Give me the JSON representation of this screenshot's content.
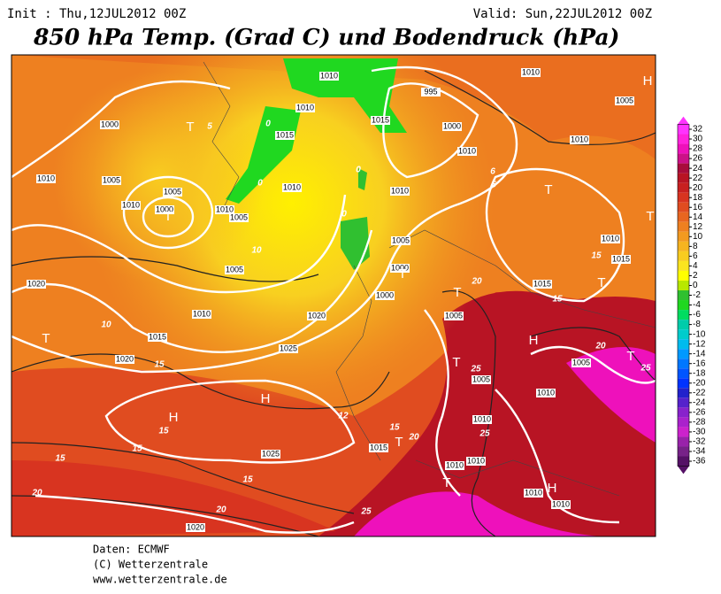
{
  "header": {
    "init": "Init : Thu,12JUL2012 00Z",
    "valid": "Valid: Sun,22JUL2012 00Z",
    "title": "850 hPa Temp. (Grad C) und Bodendruck (hPa)"
  },
  "footer": [
    "Daten: ECMWF",
    "(C) Wetterzentrale",
    "www.wetterzentrale.de"
  ],
  "colorbar": {
    "ticks": [
      32,
      30,
      28,
      26,
      24,
      22,
      20,
      18,
      16,
      14,
      12,
      10,
      8,
      6,
      4,
      2,
      0,
      -2,
      -4,
      -6,
      -8,
      -10,
      -12,
      -14,
      -16,
      -18,
      -20,
      -22,
      -24,
      -26,
      -28,
      -30,
      -32,
      -34,
      -36
    ],
    "colors": [
      "#ff33ff",
      "#ff22dd",
      "#ee11bb",
      "#cc1188",
      "#a80c3c",
      "#b81424",
      "#c82020",
      "#d83420",
      "#e04c20",
      "#e86620",
      "#ee8020",
      "#f29a20",
      "#f6b420",
      "#f8cc20",
      "#fae420",
      "#ffff00",
      "#b8e800",
      "#30c030",
      "#20d820",
      "#00dc60",
      "#00ccaa",
      "#00cccc",
      "#00bbee",
      "#0099ff",
      "#0077ff",
      "#0055ff",
      "#0033ff",
      "#2222cc",
      "#5522cc",
      "#8822cc",
      "#aa22cc",
      "#cc22cc",
      "#9922aa",
      "#772288",
      "#551166"
    ]
  },
  "map": {
    "isobar_labels": [
      "1010",
      "1010",
      "1015",
      "1015",
      "995",
      "1000",
      "1010",
      "1010",
      "1005",
      "1010",
      "1000",
      "1010",
      "1005",
      "1005",
      "1000",
      "1010",
      "1010",
      "1005",
      "1010",
      "1010",
      "1005",
      "1000",
      "1000",
      "1005",
      "1005",
      "1010",
      "1015",
      "1020",
      "1020",
      "1020",
      "1025",
      "1005",
      "1010",
      "1005",
      "1010",
      "1010",
      "1010",
      "1015",
      "1025",
      "1020",
      "1010",
      "1010",
      "1010",
      "1015",
      "1015"
    ],
    "pressure_centers": [
      "T",
      "T",
      "T",
      "T",
      "T",
      "T",
      "T",
      "T",
      "T",
      "T",
      "H",
      "H",
      "H",
      "H",
      "H",
      "T",
      "T"
    ],
    "isotherm_labels": [
      "10",
      "10",
      "15",
      "15",
      "15",
      "15",
      "15",
      "20",
      "20",
      "25",
      "25",
      "20",
      "20",
      "15",
      "12",
      "25",
      "20",
      "25",
      "15",
      "15",
      "5",
      "6",
      "0",
      "0",
      "0",
      "0",
      "5"
    ]
  }
}
